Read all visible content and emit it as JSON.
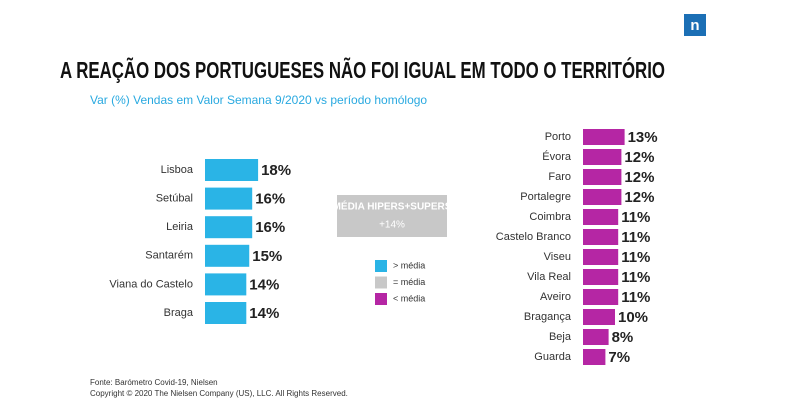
{
  "header": {
    "title": "A REAÇÃO DOS PORTUGUESES NÃO FOI IGUAL EM TODO O TERRITÓRIO",
    "subtitle": "Var (%) Vendas em Valor Semana 9/2020 vs período homólogo",
    "logo": "n"
  },
  "average": {
    "title": "MÉDIA HIPERS+SUPERS",
    "text": "+14%"
  },
  "legend": [
    {
      "text": "> média",
      "color": "#2ab4e6"
    },
    {
      "text": "= média",
      "color": "#c8c8c8"
    },
    {
      "text": "< média",
      "color": "#b526a4"
    }
  ],
  "chart_data": [
    {
      "type": "bar",
      "orientation": "horizontal",
      "color": "#2ab4e6",
      "categories": [
        "Lisboa",
        "Setúbal",
        "Leiria",
        "Santarém",
        "Viana do Castelo",
        "Braga"
      ],
      "values": [
        18,
        16,
        16,
        15,
        14,
        14
      ],
      "value_labels": [
        "18%",
        "16%",
        "16%",
        "15%",
        "14%",
        "14%"
      ]
    },
    {
      "type": "bar",
      "orientation": "horizontal",
      "color": "#b526a4",
      "categories": [
        "Porto",
        "Évora",
        "Faro",
        "Portalegre",
        "Coimbra",
        "Castelo Branco",
        "Viseu",
        "Vila Real",
        "Aveiro",
        "Bragança",
        "Beja",
        "Guarda"
      ],
      "values": [
        13,
        12,
        12,
        12,
        11,
        11,
        11,
        11,
        11,
        10,
        8,
        7
      ],
      "value_labels": [
        "13%",
        "12%",
        "12%",
        "12%",
        "11%",
        "11%",
        "11%",
        "11%",
        "11%",
        "10%",
        "8%",
        "7%"
      ]
    }
  ],
  "footer": [
    "Fonte: Barómetro Covid-19, Nielsen",
    "Copyright © 2020 The Nielsen Company (US), LLC. All Rights Reserved."
  ]
}
